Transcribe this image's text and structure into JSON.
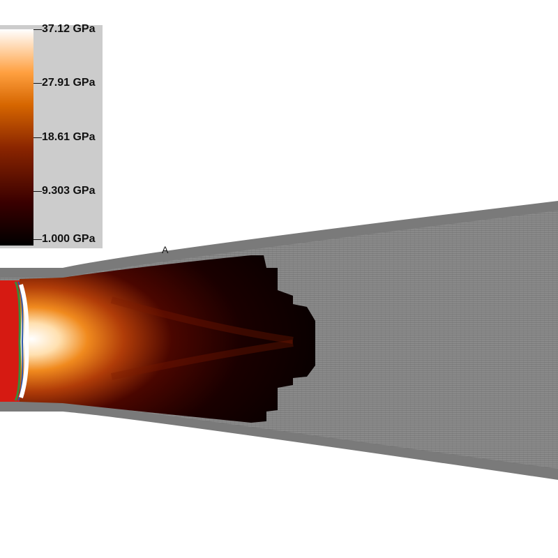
{
  "scene": {
    "colorbar": {
      "label_max": "37.12 GPa",
      "label_2": "27.91 GPa",
      "label_3": "18.61 GPa",
      "label_4": "9.303 GPa",
      "label_min": "1.000 GPa",
      "colormap": [
        "#000000",
        "#3a0000",
        "#8a2500",
        "#d66600",
        "#ffa040",
        "#ffffff"
      ]
    },
    "point_label": "A",
    "colors": {
      "wall": "#8a8a8a",
      "mesh": "#777777",
      "projectile": "#d61a12",
      "background": "#ffffff"
    }
  }
}
